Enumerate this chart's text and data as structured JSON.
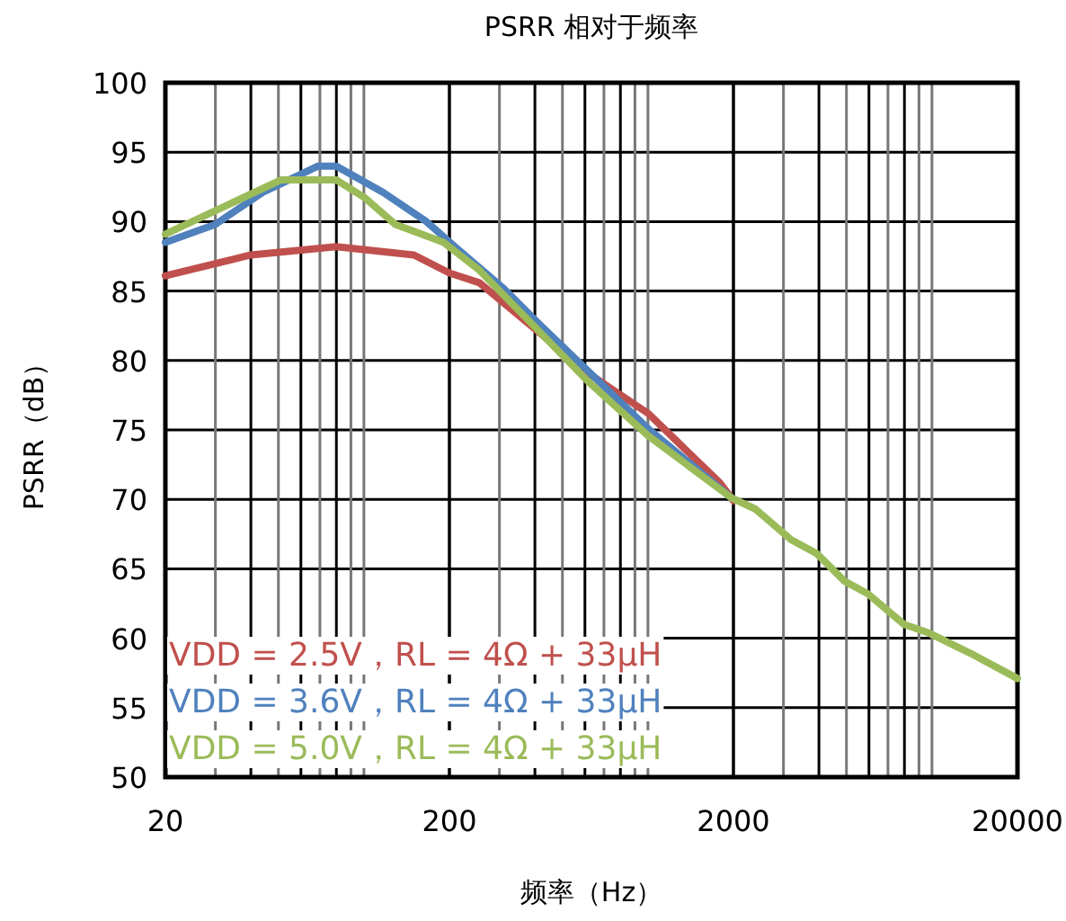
{
  "chart_data": {
    "type": "line",
    "title": "PSRR 相对于频率",
    "xlabel": "频率（Hz）",
    "ylabel": "PSRR（dB）",
    "log": "x",
    "grid": true,
    "legend": "bottom left",
    "xlim": [
      20,
      20000
    ],
    "xticks": [
      20,
      200,
      2000,
      20000
    ],
    "ylim": [
      50,
      100
    ],
    "yticks": [
      50,
      55,
      60,
      65,
      70,
      75,
      80,
      85,
      90,
      95,
      100
    ],
    "series": [
      {
        "name": "VDD = 2.5V，RL = 4Ω + 33μH",
        "color": "#c0504d",
        "x": [
          20,
          40,
          80,
          150,
          200,
          255,
          615,
          1000,
          1790,
          2000
        ],
        "values": [
          86.1,
          87.6,
          88.2,
          87.6,
          86.3,
          85.6,
          79.1,
          76.2,
          71.2,
          69.9
        ]
      },
      {
        "name": "VDD = 3.6V，RL = 4Ω + 33μH",
        "color": "#4f81bd",
        "x": [
          20,
          30,
          44,
          69,
          80,
          117,
          166,
          209,
          310,
          415,
          1000,
          1970
        ],
        "values": [
          88.5,
          89.8,
          92.1,
          94.0,
          94.0,
          92.1,
          90.0,
          88.2,
          85.2,
          82.6,
          75.1,
          70.1
        ]
      },
      {
        "name": "VDD = 5.0V，RL = 4Ω + 33μH",
        "color": "#9bbb59",
        "x": [
          20,
          51,
          80,
          101,
          129,
          191,
          255,
          375,
          615,
          1000,
          1970,
          2390,
          3190,
          3930,
          4930,
          5950,
          7970,
          9700,
          13700,
          20000
        ],
        "values": [
          89.1,
          93.0,
          93.0,
          91.7,
          89.8,
          88.5,
          86.5,
          83.0,
          78.5,
          74.6,
          70.1,
          69.3,
          67.1,
          66.1,
          64.1,
          63.2,
          61.0,
          60.4,
          58.9,
          57.1
        ]
      }
    ]
  }
}
